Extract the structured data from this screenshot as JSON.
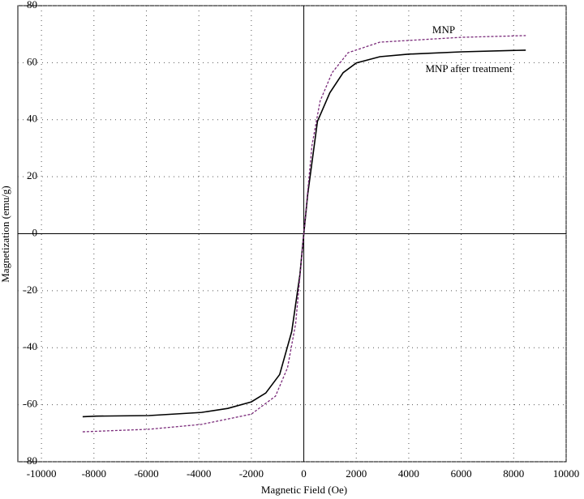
{
  "chart_data": {
    "type": "line",
    "x_label": "Magnetic Field (Oe)",
    "y_label": "Magnetization (emu/g)",
    "xlim": [
      -10900,
      10000
    ],
    "ylim": [
      -80,
      80
    ],
    "xticks": [
      -10000,
      -8000,
      -6000,
      -4000,
      -2000,
      0,
      2000,
      4000,
      6000,
      8000,
      10000
    ],
    "yticks": [
      -80,
      -60,
      -40,
      -20,
      0,
      20,
      40,
      60,
      80
    ],
    "grid": true,
    "series": [
      {
        "name": "MNP after treatment",
        "color": "#000000",
        "dash": false,
        "x": [
          -8430,
          -7900,
          -5900,
          -3900,
          -2900,
          -2000,
          -1450,
          -920,
          -460,
          -150,
          0,
          150,
          520,
          990,
          1500,
          2000,
          2900,
          4000,
          6000,
          8460
        ],
        "values": [
          -64.2,
          -64,
          -63.8,
          -62.7,
          -61.3,
          -59,
          -55.9,
          -49.4,
          -34.3,
          -14.5,
          0,
          13.9,
          39.4,
          49.4,
          56.5,
          59.9,
          62.1,
          63,
          63.8,
          64.4
        ]
      },
      {
        "name": "MNP",
        "color": "#7a2a7a",
        "dash": true,
        "x": [
          -8430,
          -5900,
          -3900,
          -2000,
          -1080,
          -620,
          -310,
          0,
          310,
          620,
          1080,
          1690,
          2900,
          6000,
          8460
        ],
        "values": [
          -69.5,
          -68.6,
          -66.9,
          -63.3,
          -57,
          -47,
          -31.5,
          0,
          30.9,
          46.5,
          56.5,
          63.5,
          67.2,
          68.9,
          69.5
        ]
      }
    ]
  }
}
